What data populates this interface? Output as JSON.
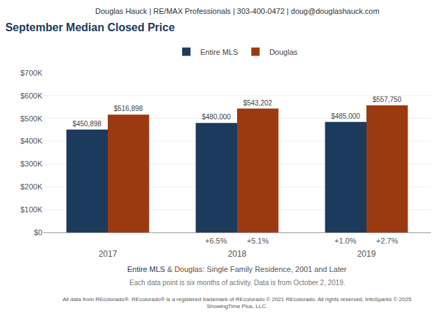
{
  "chart_data": {
    "type": "bar",
    "header": "Douglas Hauck | RE/MAX Professionals | 303-400-0472 | doug@douglashauck.com",
    "title": "September Median Closed Price",
    "subtitle": "Entire MLS & Douglas: Single Family Residence, 2001 and Later",
    "note": "Each data point is six months of activity. Data is from October 2, 2019.",
    "footer": "All data from REcolorado®. REcolorado® is a registered trademark of REcolorado © 2021 REcolorado. All rights reserved. InfoSparks © 2025\nShowingTime Plus, LLC.",
    "categories": [
      "2017",
      "2018",
      "2019"
    ],
    "series": [
      {
        "name": "Entire MLS",
        "color": "#1B3A5C",
        "values": [
          450898,
          480000,
          485000
        ],
        "value_labels": [
          "$450,898",
          "$480,000",
          "$485,000"
        ],
        "change_labels": [
          null,
          "+6.5%",
          "+1.0%"
        ]
      },
      {
        "name": "Douglas",
        "color": "#9B3A10",
        "values": [
          516898,
          543202,
          557750
        ],
        "value_labels": [
          "$516,898",
          "$543,202",
          "$557,750"
        ],
        "change_labels": [
          null,
          "+5.1%",
          "+2.7%"
        ]
      }
    ],
    "ylim": [
      0,
      700000
    ],
    "yticks": [
      {
        "value": 0,
        "label": "$0"
      },
      {
        "value": 100000,
        "label": "$100K"
      },
      {
        "value": 200000,
        "label": "$200K"
      },
      {
        "value": 300000,
        "label": "$300K"
      },
      {
        "value": 400000,
        "label": "$400K"
      },
      {
        "value": 500000,
        "label": "$500K"
      },
      {
        "value": 600000,
        "label": "$600K"
      },
      {
        "value": 700000,
        "label": "$700K"
      }
    ],
    "grid": true,
    "legend": "top",
    "data_labels": true
  }
}
